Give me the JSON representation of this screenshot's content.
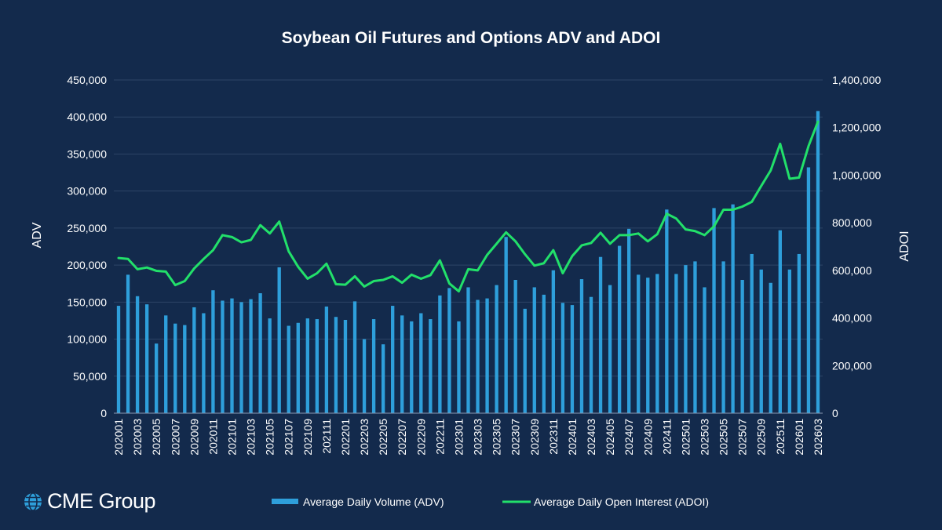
{
  "brand": {
    "name": "CME Group"
  },
  "colors": {
    "background": "#132a4c",
    "bar": "#2e9fdb",
    "line": "#22e06a",
    "text": "#ffffff",
    "grid": "#2d4466"
  },
  "chart_data": {
    "type": "bar+line",
    "title": "Soybean Oil Futures and Options ADV and ADOI",
    "xlabel": "",
    "ylabel": "ADV",
    "y2label": "ADOI",
    "ylim": [
      0,
      450000
    ],
    "y2lim": [
      0,
      1400000
    ],
    "yticks": [
      "0",
      "50,000",
      "100,000",
      "150,000",
      "200,000",
      "250,000",
      "300,000",
      "350,000",
      "400,000",
      "450,000"
    ],
    "y2ticks": [
      "0",
      "200,000",
      "400,000",
      "600,000",
      "800,000",
      "1,000,000",
      "1,200,000",
      "1,400,000"
    ],
    "legend": "bottom",
    "categories": [
      "202001",
      "202002",
      "202003",
      "202004",
      "202005",
      "202006",
      "202007",
      "202008",
      "202009",
      "202010",
      "202011",
      "202012",
      "202101",
      "202102",
      "202103",
      "202104",
      "202105",
      "202106",
      "202107",
      "202108",
      "202109",
      "202110",
      "202111",
      "202112",
      "202201",
      "202202",
      "202203",
      "202204",
      "202205",
      "202206",
      "202207",
      "202208",
      "202209",
      "202210",
      "202211",
      "202212",
      "202301",
      "202302",
      "202303",
      "202304",
      "202305",
      "202306",
      "202307",
      "202308",
      "202309",
      "202310",
      "202311",
      "202312",
      "202401",
      "202402",
      "202403",
      "202404",
      "202405",
      "202406",
      "202407",
      "202408",
      "202409",
      "202410",
      "202411",
      "202412",
      "202501",
      "202502",
      "202503",
      "202504",
      "202505",
      "202506",
      "202507",
      "202508",
      "202509",
      "202510",
      "202511",
      "202512",
      "202601",
      "202602",
      "202603"
    ],
    "xtick_labels": [
      "202001",
      "202003",
      "202005",
      "202007",
      "202009",
      "202011",
      "202101",
      "202103",
      "202105",
      "202107",
      "202109",
      "202111",
      "202201",
      "202203",
      "202205",
      "202207",
      "202209",
      "202211",
      "202301",
      "202303",
      "202305",
      "202307",
      "202309",
      "202311",
      "202401",
      "202403",
      "202405",
      "202407",
      "202409",
      "202411",
      "202501",
      "202503",
      "202505",
      "202507",
      "202509",
      "202511",
      "202601",
      "202603"
    ],
    "series": [
      {
        "name": "Average Daily Volume (ADV)",
        "type": "bar",
        "axis": "left",
        "values": [
          145000,
          187000,
          158000,
          147000,
          94000,
          132000,
          121000,
          119000,
          143000,
          135000,
          166000,
          152000,
          155000,
          150000,
          154000,
          162000,
          128000,
          197000,
          118000,
          122000,
          128000,
          127000,
          144000,
          130000,
          126000,
          151000,
          100000,
          127000,
          93000,
          145000,
          132000,
          124000,
          135000,
          127000,
          159000,
          169000,
          124000,
          170000,
          153000,
          155000,
          173000,
          238000,
          180000,
          141000,
          170000,
          160000,
          193000,
          149000,
          146000,
          181000,
          157000,
          211000,
          173000,
          226000,
          249000,
          187000,
          183000,
          188000,
          275000,
          188000,
          200000,
          205000,
          170000,
          277000,
          205000,
          282000,
          180000,
          215000,
          194000,
          176000,
          247000,
          194000,
          215000,
          332000,
          408000
        ]
      },
      {
        "name": "Average Daily Open Interest (ADOI)",
        "type": "line",
        "axis": "right",
        "values": [
          652000,
          648000,
          605000,
          612000,
          598000,
          595000,
          538000,
          555000,
          608000,
          648000,
          685000,
          748000,
          740000,
          718000,
          728000,
          790000,
          755000,
          805000,
          680000,
          615000,
          565000,
          588000,
          628000,
          542000,
          540000,
          575000,
          532000,
          555000,
          560000,
          575000,
          548000,
          582000,
          565000,
          580000,
          642000,
          545000,
          512000,
          605000,
          600000,
          665000,
          712000,
          760000,
          722000,
          668000,
          620000,
          630000,
          685000,
          588000,
          660000,
          705000,
          715000,
          758000,
          712000,
          748000,
          748000,
          755000,
          722000,
          752000,
          838000,
          818000,
          772000,
          765000,
          748000,
          785000,
          855000,
          855000,
          868000,
          888000,
          955000,
          1020000,
          1132000,
          985000,
          990000,
          1122000,
          1225000
        ]
      }
    ]
  }
}
